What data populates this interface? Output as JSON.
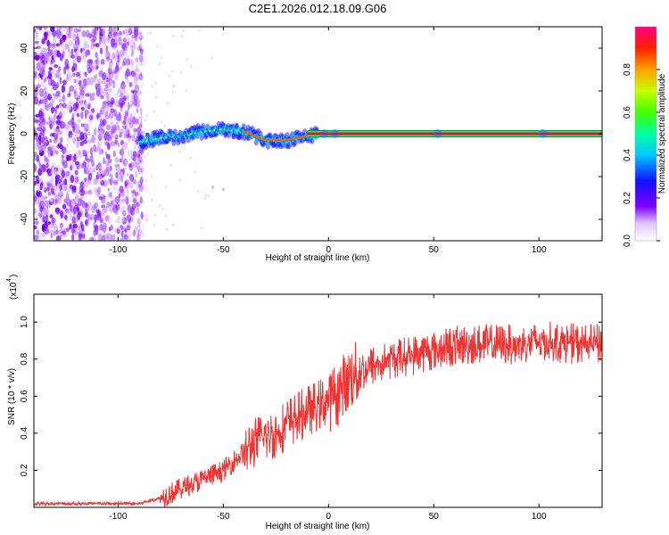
{
  "title": "C2E1.2026.012.18.09.G06",
  "colors": {
    "signal_line": "#ee3333",
    "noise_purple": "#7f00ff",
    "track_green": "#00c060",
    "track_red": "#ff0040",
    "axis": "#000000"
  },
  "chart_data": [
    {
      "type": "heatmap",
      "title": "C2E1.2026.012.18.09.G06",
      "xlabel": "Height of straight line (km)",
      "ylabel": "Frequency (Hz)",
      "xlim": [
        -140,
        130
      ],
      "ylim": [
        -50,
        50
      ],
      "x_ticks": [
        -100,
        -50,
        0,
        50,
        100
      ],
      "y_ticks": [
        -40,
        -20,
        0,
        20,
        40
      ],
      "description_series": [
        {
          "name": "noise_region",
          "x_range": [
            -140,
            -88
          ],
          "y_range": [
            -50,
            50
          ],
          "amplitude": 0.1
        },
        {
          "name": "tracking_segment",
          "x": [
            -90,
            -80,
            -70,
            -60,
            -50,
            -40,
            -30,
            -20,
            -10,
            0,
            10
          ],
          "y": [
            -4,
            -2,
            -1,
            1,
            2,
            1,
            -3,
            -3,
            -1,
            0,
            0
          ]
        },
        {
          "name": "locked_line",
          "x_range": [
            -10,
            130
          ],
          "y": 0,
          "amplitude": 1.0
        }
      ],
      "colorbar": {
        "label": "Normalized spectral amplitude",
        "range": [
          0.0,
          1.0
        ],
        "ticks": [
          0.0,
          0.2,
          0.4,
          0.6,
          0.8
        ],
        "tick_labels": [
          "0.0",
          "0.2",
          "0.4",
          "0.6",
          "0.8"
        ]
      }
    },
    {
      "type": "line",
      "xlabel": "Height of straight line (km)",
      "ylabel": "SNR (10 * v/v)",
      "y_multiplier": "(x10",
      "y_multiplier_exp": "4",
      "xlim": [
        -140,
        130
      ],
      "ylim": [
        0,
        1.15
      ],
      "x_ticks": [
        -100,
        -50,
        0,
        50,
        100
      ],
      "y_ticks": [
        0.2,
        0.4,
        0.6,
        0.8,
        1.0
      ],
      "y_tick_labels": [
        "0.2",
        "0.4",
        "0.6",
        "0.8",
        "1.0"
      ],
      "series": [
        {
          "name": "SNR",
          "trend_x": [
            -140,
            -90,
            -80,
            -70,
            -60,
            -50,
            -40,
            -35,
            -30,
            -25,
            -20,
            -10,
            0,
            5,
            10,
            15,
            20,
            30,
            40,
            50,
            60,
            70,
            80,
            90,
            100,
            110,
            120,
            130
          ],
          "trend_y": [
            0.02,
            0.02,
            0.05,
            0.1,
            0.15,
            0.2,
            0.3,
            0.35,
            0.38,
            0.4,
            0.45,
            0.52,
            0.58,
            0.62,
            0.7,
            0.73,
            0.76,
            0.8,
            0.82,
            0.85,
            0.87,
            0.88,
            0.88,
            0.88,
            0.9,
            0.89,
            0.88,
            0.88
          ],
          "noise_amplitude": 0.12
        }
      ]
    }
  ]
}
